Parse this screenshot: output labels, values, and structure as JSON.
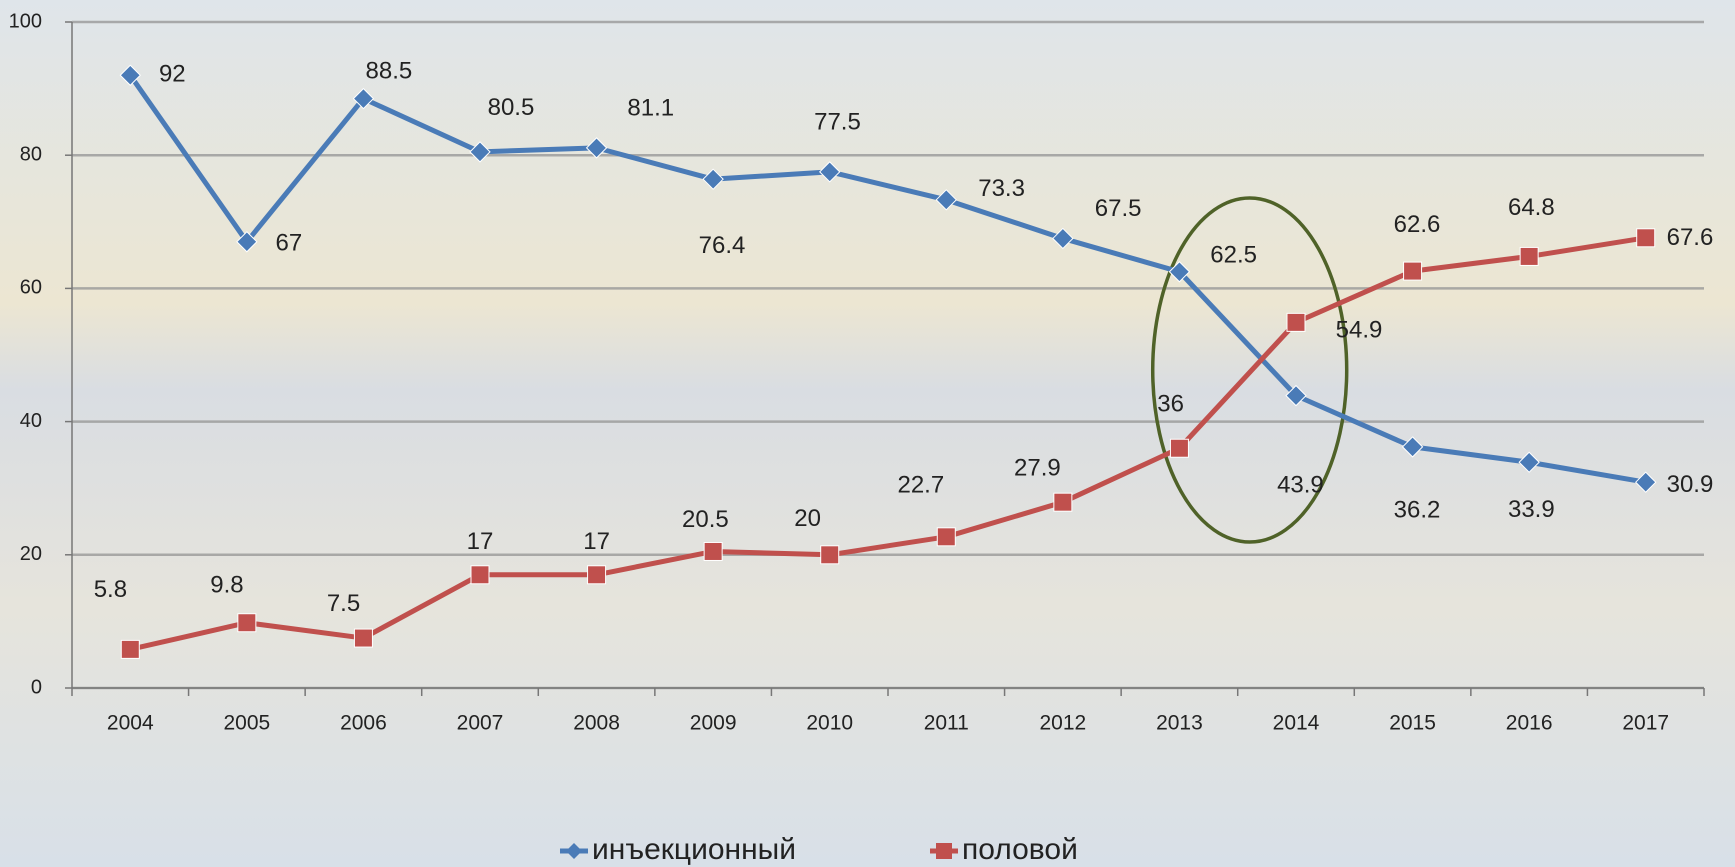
{
  "chart_data": {
    "type": "line",
    "categories": [
      "2004",
      "2005",
      "2006",
      "2007",
      "2008",
      "2009",
      "2010",
      "2011",
      "2012",
      "2013",
      "2014",
      "2015",
      "2016",
      "2017"
    ],
    "series": [
      {
        "name": "инъекционный",
        "color": "#4a7bb7",
        "marker": "diamond",
        "values": [
          92,
          67,
          88.5,
          80.5,
          81.1,
          76.4,
          77.5,
          73.3,
          67.5,
          62.5,
          43.9,
          36.2,
          33.9,
          30.9
        ]
      },
      {
        "name": "половой",
        "color": "#c0504d",
        "marker": "square",
        "values": [
          5.8,
          9.8,
          7.5,
          17,
          17,
          20.5,
          20,
          22.7,
          27.9,
          36,
          54.9,
          62.6,
          64.8,
          67.6
        ]
      }
    ],
    "ylim": [
      0,
      100
    ],
    "yticks": [
      0,
      20,
      40,
      60,
      80,
      100
    ],
    "grid": true,
    "legend": "bottom"
  }
}
